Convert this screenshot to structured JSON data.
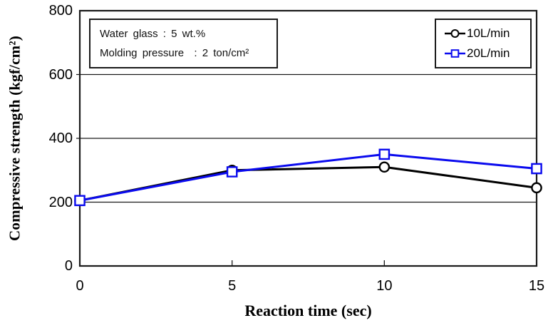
{
  "figure": {
    "background": "#ffffff"
  },
  "chart_data": {
    "type": "line",
    "title": "",
    "xlabel": "Reaction time (sec)",
    "ylabel": "Compressive strength (kgf/cm²)",
    "x": [
      0,
      5,
      10,
      15
    ],
    "xticks": [
      "0",
      "5",
      "10",
      "15"
    ],
    "yticks": [
      "0",
      "200",
      "400",
      "600",
      "800"
    ],
    "xlim": [
      0,
      15
    ],
    "ylim": [
      0,
      800
    ],
    "grid": "horizontal-only",
    "gridline_values": [
      200,
      400,
      600
    ],
    "inner_xtick_values": [
      5,
      10
    ],
    "legend_position": "top-right-inside",
    "series": [
      {
        "name": "10L/min",
        "color": "#000000",
        "marker": "circle",
        "values": [
          205,
          300,
          310,
          245
        ]
      },
      {
        "name": "20L/min",
        "color": "#0b0bee",
        "marker": "square",
        "values": [
          205,
          295,
          350,
          305
        ]
      }
    ],
    "annotation": {
      "lines": [
        "Water glass : 5 wt.%",
        "Molding pressure  : 2 ton/cm²"
      ]
    }
  }
}
